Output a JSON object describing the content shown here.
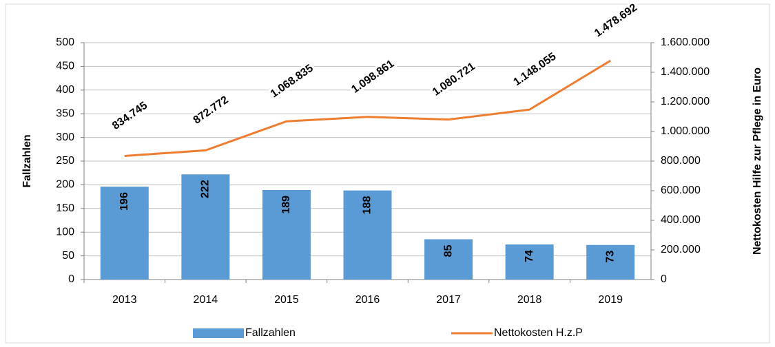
{
  "chart_data": {
    "type": "bar",
    "categories": [
      "2013",
      "2014",
      "2015",
      "2016",
      "2017",
      "2018",
      "2019"
    ],
    "series": [
      {
        "name": "Fallzahlen",
        "type": "bar",
        "color": "#5b9bd5",
        "axis": "y",
        "values": [
          196,
          222,
          189,
          188,
          85,
          74,
          73
        ]
      },
      {
        "name": "Nettokosten H.z.P",
        "type": "line",
        "color": "#ed7d31",
        "axis": "y2",
        "values": [
          834745,
          872772,
          1068835,
          1098861,
          1080721,
          1148055,
          1478692
        ],
        "value_labels": [
          "834.745",
          "872.772",
          "1.068.835",
          "1.098.861",
          "1.080.721",
          "1.148.055",
          "1.478.692"
        ]
      }
    ],
    "y_label": "Fallzahlen",
    "y2_label": "Nettokosten Hilfe zur Pflege in Euro",
    "ylim": [
      0,
      500
    ],
    "yticks": [
      0,
      50,
      100,
      150,
      200,
      250,
      300,
      350,
      400,
      450,
      500
    ],
    "y2lim": [
      0,
      1600000
    ],
    "y2ticks": [
      0,
      {
        "value": 200000,
        "label": "200.000"
      },
      {
        "value": 400000,
        "label": "400.000"
      },
      {
        "value": 600000,
        "label": "600.000"
      },
      {
        "value": 800000,
        "label": "800.000"
      },
      {
        "value": 1000000,
        "label": "1.000.000"
      },
      {
        "value": 1200000,
        "label": "1.200.000"
      },
      {
        "value": 1400000,
        "label": "1.400.000"
      },
      {
        "value": 1600000,
        "label": "1.600.000"
      }
    ],
    "grid": true,
    "legend": "bottom"
  }
}
